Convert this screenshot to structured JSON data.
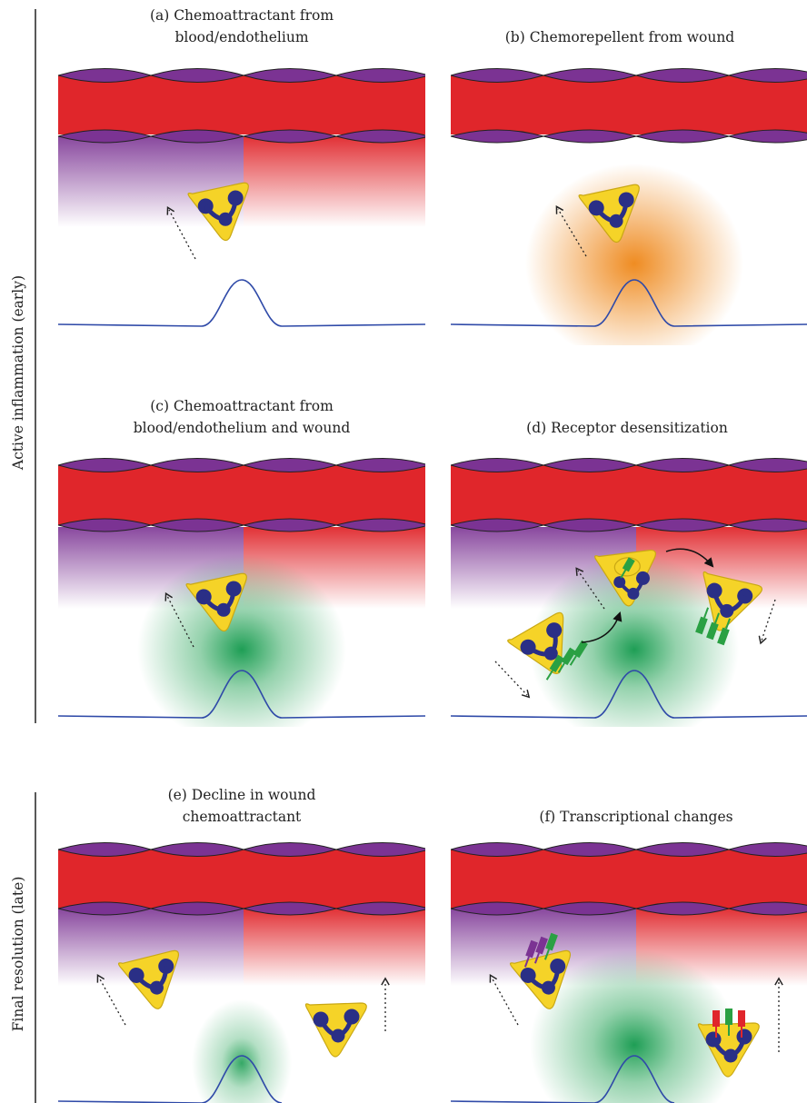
{
  "side_labels": {
    "early": "Active inflammation (early)",
    "late": "Final resolution (late)"
  },
  "panels": {
    "a": {
      "title_line1": "(a) Chemoattractant from",
      "title_line2": "blood/endothelium"
    },
    "b": {
      "title_line1": "(b) Chemorepellent from wound",
      "title_line2": ""
    },
    "c": {
      "title_line1": "(c) Chemoattractant from",
      "title_line2": "blood/endothelium and wound"
    },
    "d": {
      "title_line1": "(d) Receptor desensitization",
      "title_line2": ""
    },
    "e": {
      "title_line1": "(e) Decline in wound",
      "title_line2": "chemoattractant"
    },
    "f": {
      "title_line1": "(f) Transcriptional changes",
      "title_line2": ""
    }
  },
  "colors": {
    "vessel": "#e0262b",
    "endothelium": "#7b3393",
    "cell": "#f5d328",
    "nucleus": "#2a2f86",
    "wound_line": "#2f4aa8",
    "chemorepellent": "#ef8c22",
    "wound_chemoattractant": "#2aa55a",
    "receptor_green": "#2aa043",
    "receptor_purple": "#7b3393",
    "receptor_red": "#e0262b"
  }
}
